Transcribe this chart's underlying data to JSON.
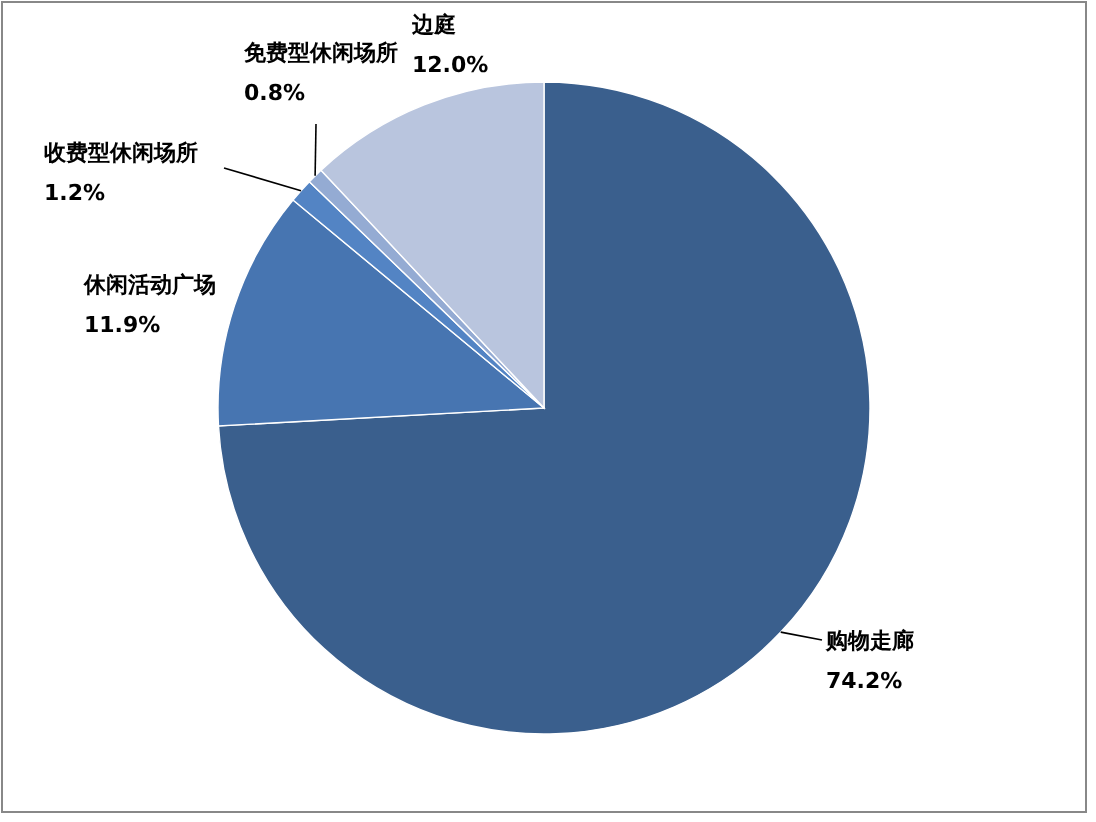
{
  "chart_data": {
    "type": "pie",
    "categories": [
      "购物走廊",
      "休闲活动广场",
      "收费型休闲场所",
      "免费型休闲场所",
      "边庭"
    ],
    "values": [
      74.2,
      11.9,
      1.2,
      0.8,
      12.0
    ],
    "value_labels": [
      "74.2%",
      "11.9%",
      "1.2%",
      "0.8%",
      "12.0%"
    ],
    "colors": [
      "#3a5f8d",
      "#4775b1",
      "#5384c4",
      "#94abd3",
      "#b9c5de"
    ]
  }
}
